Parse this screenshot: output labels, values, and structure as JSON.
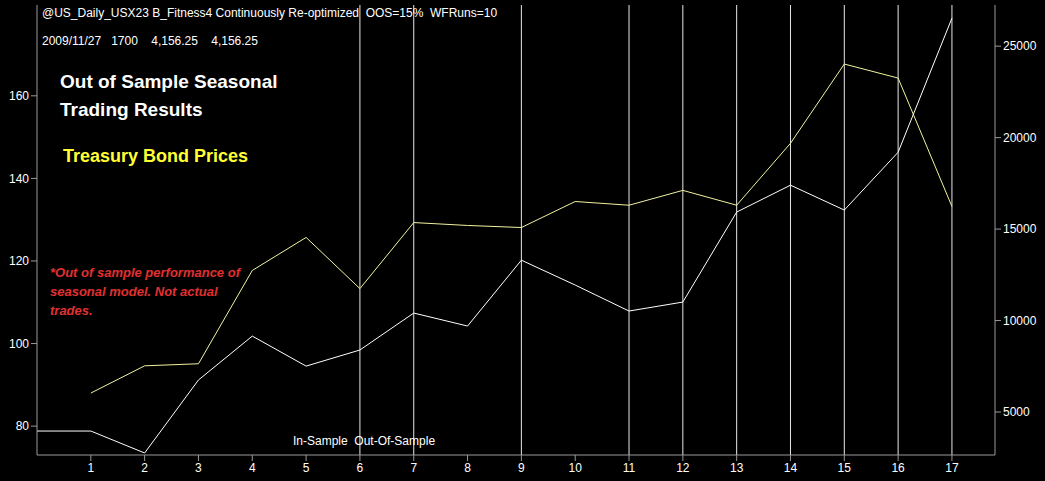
{
  "chart_data": {
    "type": "line",
    "header_lines": [
      "@US_Daily_USX23 B_Fitness4 Continuously Re-optimized  OOS=15%  WFRuns=10",
      "2009/11/27   1700    4,156.25    4,156.25"
    ],
    "title": "Out of Sample Seasonal Trading Results",
    "subtitle": "Treasury Bond Prices",
    "annotations": [
      "*Out of sample performance of seasonal model. Not actual trades.",
      "In-Sample  Out-Of-Sample"
    ],
    "x": [
      0,
      1,
      2,
      3,
      4,
      5,
      6,
      7,
      8,
      9,
      10,
      11,
      12,
      13,
      14,
      15,
      16,
      17
    ],
    "xlim": [
      0,
      17.8
    ],
    "xticks": [
      1,
      2,
      3,
      4,
      5,
      6,
      7,
      8,
      9,
      10,
      11,
      12,
      13,
      14,
      15,
      16,
      17
    ],
    "ylim": [
      73,
      182
    ],
    "yticks": [
      80,
      100,
      120,
      140,
      160
    ],
    "y2lim": [
      2650,
      27250
    ],
    "y2ticks": [
      5000,
      10000,
      15000,
      20000,
      25000
    ],
    "vlines": [
      6,
      7,
      9,
      11,
      12,
      13,
      14,
      15,
      16,
      17
    ],
    "grid": false,
    "series": [
      {
        "color": "#f2f2a0",
        "values": [
          null,
          88.0,
          94.6,
          95.1,
          117.7,
          125.7,
          113.3,
          129.3,
          128.6,
          128.1,
          134.4,
          133.5,
          137.1,
          133.5,
          148.5,
          167.7,
          164.3,
          133.2
        ]
      },
      {
        "color": "#ffffff",
        "axis": "y2",
        "values": [
          3960,
          3960,
          2760,
          6750,
          9150,
          7510,
          8390,
          10410,
          9700,
          13300,
          11940,
          10520,
          11010,
          15930,
          17400,
          16040,
          19200,
          26530
        ]
      }
    ]
  }
}
